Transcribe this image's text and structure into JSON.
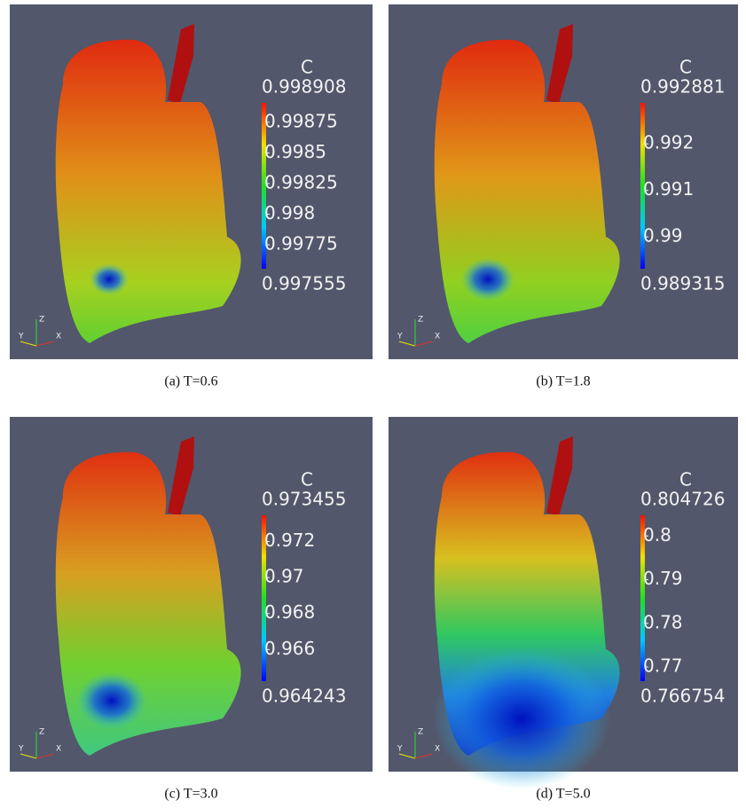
{
  "panels": [
    {
      "caption": "(a) T=0.6",
      "axes": {
        "x": "X",
        "y": "Y",
        "z": "Z"
      },
      "colorbar": {
        "title": "C",
        "max": 0.998908,
        "min": 0.997555,
        "ticks": [
          0.99875,
          0.9985,
          0.99825,
          0.998,
          0.99775
        ]
      }
    },
    {
      "caption": "(b) T=1.8",
      "axes": {
        "x": "X",
        "y": "Y",
        "z": "Z"
      },
      "colorbar": {
        "title": "C",
        "max": 0.992881,
        "min": 0.989315,
        "ticks": [
          0.992,
          0.991,
          0.99
        ]
      }
    },
    {
      "caption": "(c) T=3.0",
      "axes": {
        "x": "X",
        "y": "Y",
        "z": "Z"
      },
      "colorbar": {
        "title": "C",
        "max": 0.973455,
        "min": 0.964243,
        "ticks": [
          0.972,
          0.97,
          0.968,
          0.966
        ]
      }
    },
    {
      "caption": "(d) T=5.0",
      "axes": {
        "x": "X",
        "y": "Y",
        "z": "Z"
      },
      "colorbar": {
        "title": "C",
        "max": 0.804726,
        "min": 0.766754,
        "ticks": [
          0.8,
          0.79,
          0.78,
          0.77
        ]
      }
    }
  ]
}
